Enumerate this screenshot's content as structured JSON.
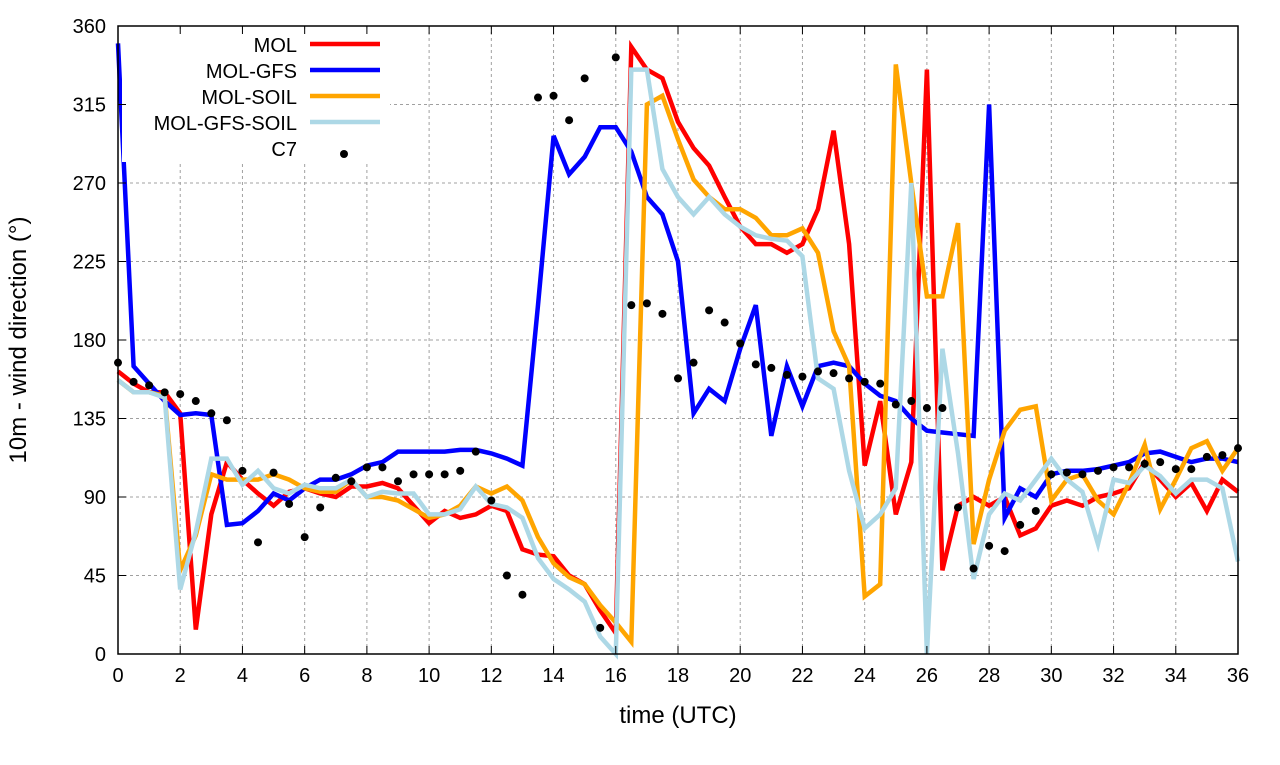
{
  "chart_data": {
    "type": "line",
    "title": "",
    "xlabel": "time (UTC)",
    "ylabel": "10m - wind direction (°)",
    "xlim": [
      0,
      36
    ],
    "ylim": [
      0,
      360
    ],
    "xticks": [
      0,
      2,
      4,
      6,
      8,
      10,
      12,
      14,
      16,
      18,
      20,
      22,
      24,
      26,
      28,
      30,
      32,
      34,
      36
    ],
    "yticks": [
      0,
      45,
      90,
      135,
      180,
      225,
      270,
      315,
      360
    ],
    "grid": true,
    "legend_position": "top-left",
    "x": [
      0,
      0.5,
      1,
      1.5,
      2,
      2.5,
      3,
      3.5,
      4,
      4.5,
      5,
      5.5,
      6,
      6.5,
      7,
      7.5,
      8,
      8.5,
      9,
      9.5,
      10,
      10.5,
      11,
      11.5,
      12,
      12.5,
      13,
      13.5,
      14,
      14.5,
      15,
      15.5,
      16,
      16.5,
      17,
      17.5,
      18,
      18.5,
      19,
      19.5,
      20,
      20.5,
      21,
      21.5,
      22,
      22.5,
      23,
      23.5,
      24,
      24.5,
      25,
      25.5,
      26,
      26.5,
      27,
      27.5,
      28,
      28.5,
      29,
      29.5,
      30,
      30.5,
      31,
      31.5,
      32,
      32.5,
      33,
      33.5,
      34,
      34.5,
      35,
      35.5,
      36
    ],
    "series": [
      {
        "name": "MOL",
        "color": "#ff0000",
        "style": "line",
        "values": [
          162,
          155,
          150,
          150,
          138,
          14,
          80,
          110,
          100,
          92,
          85,
          93,
          95,
          92,
          90,
          96,
          96,
          98,
          95,
          85,
          75,
          82,
          78,
          80,
          85,
          82,
          60,
          57,
          56,
          45,
          40,
          25,
          12,
          348,
          335,
          330,
          305,
          290,
          280,
          262,
          245,
          235,
          235,
          230,
          235,
          255,
          300,
          235,
          108,
          145,
          80,
          110,
          335,
          48,
          85,
          90,
          85,
          90,
          68,
          72,
          85,
          88,
          85,
          90,
          92,
          95,
          110,
          100,
          90,
          98,
          82,
          100,
          93
        ]
      },
      {
        "name": "MOL-GFS",
        "color": "#0000ff",
        "style": "line",
        "values": [
          350,
          165,
          155,
          145,
          137,
          138,
          137,
          74,
          75,
          82,
          92,
          88,
          95,
          100,
          100,
          103,
          108,
          110,
          116,
          116,
          116,
          116,
          117,
          117,
          115,
          112,
          108,
          200,
          297,
          275,
          285,
          302,
          302,
          288,
          262,
          252,
          225,
          138,
          152,
          145,
          175,
          200,
          125,
          165,
          142,
          165,
          167,
          165,
          155,
          148,
          145,
          135,
          128,
          127,
          126,
          125,
          315,
          78,
          95,
          90,
          103,
          105,
          105,
          106,
          108,
          110,
          115,
          116,
          113,
          110,
          112,
          112,
          110
        ]
      },
      {
        "name": "MOL-SOIL",
        "color": "#ffa500",
        "style": "line",
        "values": [
          157,
          150,
          150,
          148,
          48,
          68,
          103,
          100,
          100,
          100,
          103,
          100,
          95,
          93,
          93,
          100,
          90,
          90,
          88,
          83,
          78,
          80,
          85,
          96,
          92,
          96,
          88,
          67,
          52,
          44,
          40,
          28,
          18,
          7,
          315,
          320,
          295,
          272,
          262,
          255,
          255,
          250,
          240,
          240,
          244,
          230,
          185,
          165,
          33,
          40,
          338,
          270,
          205,
          205,
          247,
          63,
          100,
          128,
          140,
          142,
          88,
          100,
          103,
          88,
          80,
          98,
          120,
          83,
          100,
          118,
          122,
          105,
          118
        ]
      },
      {
        "name": "MOL-GFS-SOIL",
        "color": "#add8e6",
        "style": "line",
        "values": [
          157,
          150,
          150,
          147,
          37,
          70,
          112,
          112,
          97,
          105,
          95,
          92,
          97,
          95,
          95,
          100,
          90,
          93,
          92,
          92,
          80,
          80,
          83,
          96,
          86,
          84,
          78,
          55,
          43,
          37,
          30,
          10,
          0,
          335,
          335,
          278,
          262,
          252,
          262,
          252,
          245,
          240,
          238,
          237,
          228,
          158,
          152,
          105,
          72,
          80,
          95,
          270,
          0,
          175,
          115,
          43,
          80,
          92,
          88,
          100,
          112,
          100,
          93,
          63,
          100,
          98,
          108,
          102,
          92,
          100,
          100,
          95,
          53
        ]
      },
      {
        "name": "C7",
        "color": "#000000",
        "style": "points",
        "values": [
          167,
          156,
          154,
          150,
          149,
          145,
          138,
          134,
          105,
          64,
          104,
          86,
          67,
          84,
          101,
          99,
          107,
          107,
          99,
          103,
          103,
          103,
          105,
          116,
          88,
          45,
          34,
          319,
          320,
          306,
          330,
          15,
          342,
          200,
          201,
          195,
          158,
          167,
          197,
          190,
          178,
          166,
          164,
          160,
          159,
          162,
          161,
          158,
          156,
          155,
          143,
          145,
          141,
          141,
          84,
          49,
          62,
          59,
          74,
          82,
          103,
          104,
          103,
          105,
          107,
          107,
          109,
          110,
          106,
          106,
          113,
          114,
          118
        ]
      }
    ]
  }
}
